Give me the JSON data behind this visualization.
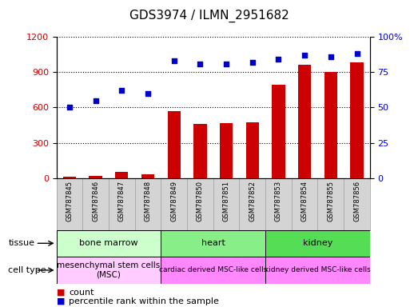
{
  "title": "GDS3974 / ILMN_2951682",
  "samples": [
    "GSM787845",
    "GSM787846",
    "GSM787847",
    "GSM787848",
    "GSM787849",
    "GSM787850",
    "GSM787851",
    "GSM787852",
    "GSM787853",
    "GSM787854",
    "GSM787855",
    "GSM787856"
  ],
  "counts": [
    15,
    20,
    55,
    30,
    570,
    460,
    465,
    475,
    790,
    960,
    900,
    980
  ],
  "percentile_ranks": [
    50,
    55,
    62,
    60,
    83,
    81,
    81,
    82,
    84,
    87,
    86,
    88
  ],
  "bar_color": "#cc0000",
  "dot_color": "#0000cc",
  "ylim_left": [
    0,
    1200
  ],
  "ylim_right": [
    0,
    100
  ],
  "yticks_left": [
    0,
    300,
    600,
    900,
    1200
  ],
  "yticks_right": [
    0,
    25,
    50,
    75,
    100
  ],
  "yticklabels_right": [
    "0",
    "25",
    "50",
    "75",
    "100%"
  ],
  "tissue_groups": [
    {
      "label": "bone marrow",
      "start": 0,
      "end": 4
    },
    {
      "label": "heart",
      "start": 4,
      "end": 8
    },
    {
      "label": "kidney",
      "start": 8,
      "end": 12
    }
  ],
  "tissue_colors": [
    "#ccffcc",
    "#88ee88",
    "#55dd55"
  ],
  "cell_type_groups": [
    {
      "label": "mesenchymal stem cells\n(MSC)",
      "start": 0,
      "end": 4
    },
    {
      "label": "cardiac derived MSC-like cells",
      "start": 4,
      "end": 8
    },
    {
      "label": "kidney derived MSC-like cells",
      "start": 8,
      "end": 12
    }
  ],
  "cell_colors": [
    "#ffccff",
    "#ff88ff",
    "#ff88ff"
  ],
  "tissue_label": "tissue",
  "cell_type_label": "cell type",
  "legend_count_label": "count",
  "legend_pct_label": "percentile rank within the sample",
  "background_color": "#ffffff",
  "tick_label_color_left": "#cc0000",
  "tick_label_color_right": "#0000cc",
  "sample_box_color": "#d4d4d4",
  "sample_box_edge": "#aaaaaa"
}
